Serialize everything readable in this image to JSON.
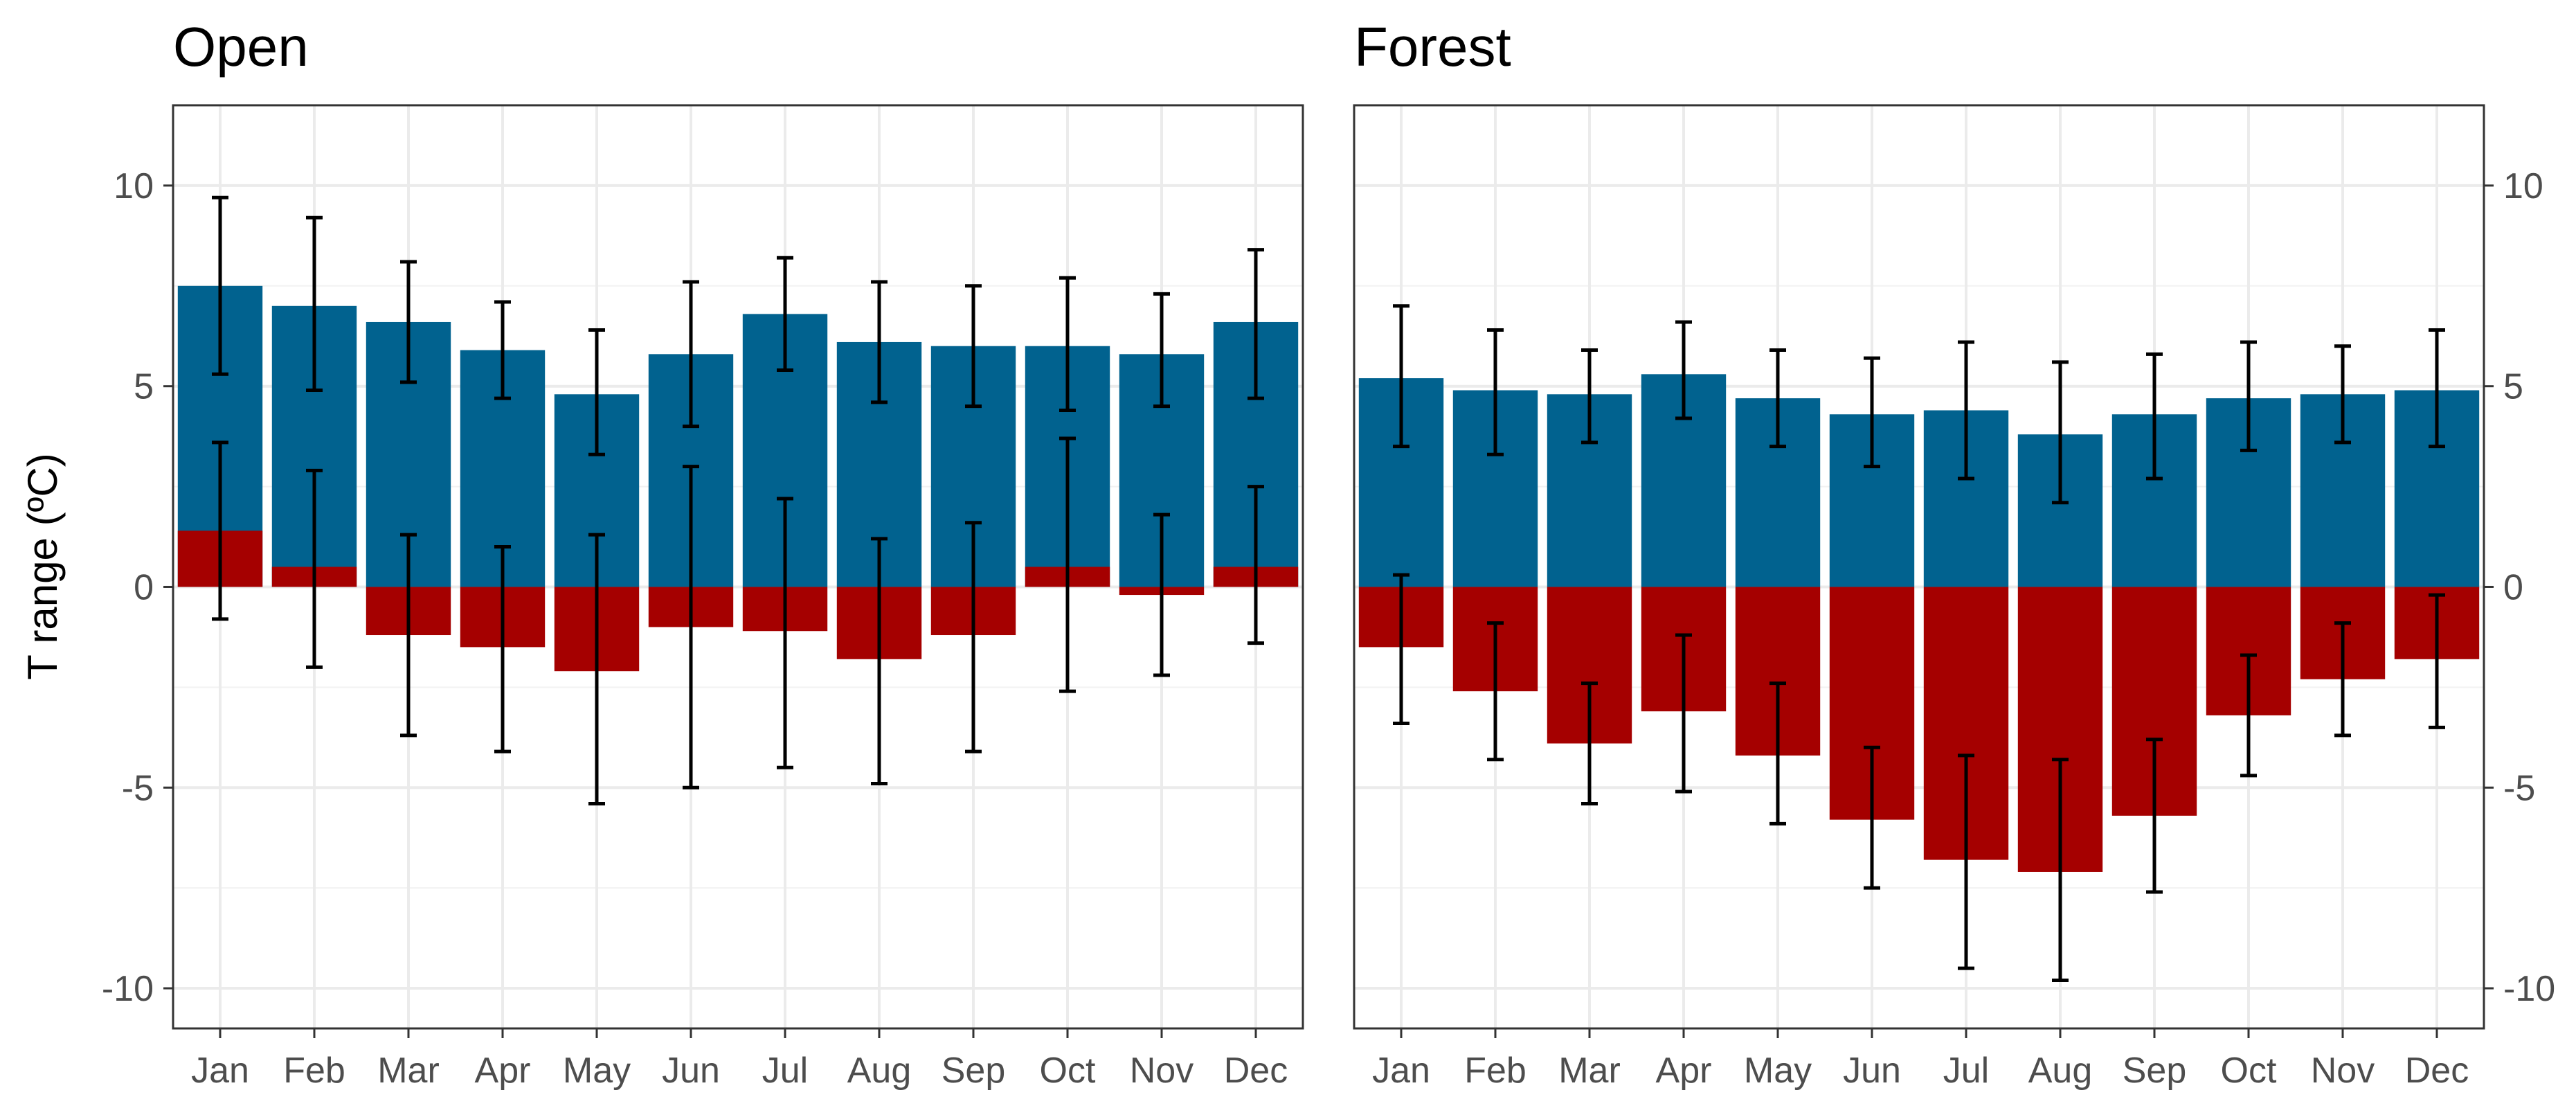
{
  "chart_data": {
    "type": "bar",
    "ylabel": "T range (ºC)",
    "ylim": [
      -11,
      12
    ],
    "yticks": [
      -10,
      -5,
      0,
      5,
      10
    ],
    "ytick_labels": [
      "-10",
      "-5",
      "0",
      "5",
      "10"
    ],
    "categories": [
      "Jan",
      "Feb",
      "Mar",
      "Apr",
      "May",
      "Jun",
      "Jul",
      "Aug",
      "Sep",
      "Oct",
      "Nov",
      "Dec"
    ],
    "colors": {
      "positive": "#01628f",
      "negative": "#a50000"
    },
    "panels": [
      {
        "title": "Open",
        "y_axis_side": "left",
        "series": [
          {
            "name": "positive",
            "values": [
              7.5,
              7.0,
              6.6,
              5.9,
              4.8,
              5.8,
              6.8,
              6.1,
              6.0,
              6.0,
              5.8,
              6.6
            ],
            "err_low": [
              5.3,
              4.9,
              5.1,
              4.7,
              3.3,
              4.0,
              5.4,
              4.6,
              4.5,
              4.4,
              4.5,
              4.7
            ],
            "err_high": [
              9.7,
              9.2,
              8.1,
              7.1,
              6.4,
              7.6,
              8.2,
              7.6,
              7.5,
              7.7,
              7.3,
              8.4
            ]
          },
          {
            "name": "negative",
            "values": [
              1.4,
              0.5,
              -1.2,
              -1.5,
              -2.1,
              -1.0,
              -1.1,
              -1.8,
              -1.2,
              0.5,
              -0.2,
              0.5
            ],
            "err_low": [
              -0.8,
              -2.0,
              -3.7,
              -4.1,
              -5.4,
              -5.0,
              -4.5,
              -4.9,
              -4.1,
              -2.6,
              -2.2,
              -1.4
            ],
            "err_high": [
              3.6,
              2.9,
              1.3,
              1.0,
              1.3,
              3.0,
              2.2,
              1.2,
              1.6,
              3.7,
              1.8,
              2.5
            ]
          }
        ]
      },
      {
        "title": "Forest",
        "y_axis_side": "right",
        "series": [
          {
            "name": "positive",
            "values": [
              5.2,
              4.9,
              4.8,
              5.3,
              4.7,
              4.3,
              4.4,
              3.8,
              4.3,
              4.7,
              4.8,
              4.9
            ],
            "err_low": [
              3.5,
              3.3,
              3.6,
              4.2,
              3.5,
              3.0,
              2.7,
              2.1,
              2.7,
              3.4,
              3.6,
              3.5
            ],
            "err_high": [
              7.0,
              6.4,
              5.9,
              6.6,
              5.9,
              5.7,
              6.1,
              5.6,
              5.8,
              6.1,
              6.0,
              6.4
            ]
          },
          {
            "name": "negative",
            "values": [
              -1.5,
              -2.6,
              -3.9,
              -3.1,
              -4.2,
              -5.8,
              -6.8,
              -7.1,
              -5.7,
              -3.2,
              -2.3,
              -1.8
            ],
            "err_low": [
              -3.4,
              -4.3,
              -5.4,
              -5.1,
              -5.9,
              -7.5,
              -9.5,
              -9.8,
              -7.6,
              -4.7,
              -3.7,
              -3.5
            ],
            "err_high": [
              0.3,
              -0.9,
              -2.4,
              -1.2,
              -2.4,
              -4.0,
              -4.2,
              -4.3,
              -3.8,
              -1.7,
              -0.9,
              -0.2
            ]
          }
        ]
      }
    ]
  }
}
